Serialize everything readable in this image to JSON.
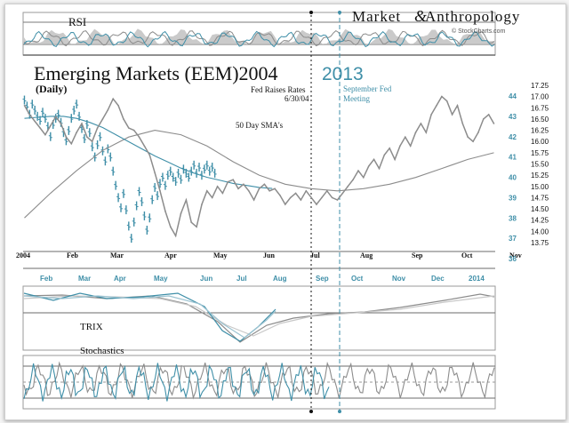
{
  "header": {
    "brand_left": "Market",
    "brand_symbol": "&",
    "brand_right": "Anthropology",
    "credit": "© StockCharts.com",
    "title_black": "Emerging Markets (EEM)2004",
    "title_teal": "2013",
    "subtitle": "(Daily)"
  },
  "panels": {
    "rsi": "RSI",
    "trix": "TRIX",
    "stochastics": "Stochastics"
  },
  "annotations": {
    "fed_2004_line1": "Fed Raises Rates",
    "fed_2004_line2": "6/30/04",
    "fed_2013_line1": "September Fed",
    "fed_2013_line2": "Meeting",
    "sma": "50 Day SMA's"
  },
  "colors": {
    "series_2004": "#8c8c8c",
    "series_2013": "#3f8fa8",
    "text": "#111111"
  },
  "chart_data": {
    "type": "line",
    "title": "Emerging Markets (EEM)2004 2013",
    "subtitle": "(Daily)",
    "x_axis_2004": [
      "2004",
      "Feb",
      "Mar",
      "Apr",
      "May",
      "Jun",
      "Jul",
      "Aug",
      "Sep",
      "Oct",
      "Nov"
    ],
    "x_axis_2013": [
      "Feb",
      "Mar",
      "Apr",
      "May",
      "Jun",
      "Jul",
      "Aug",
      "Sep",
      "Oct",
      "Nov",
      "Dec",
      "2014"
    ],
    "y_axis_2013_ticks": [
      44,
      43,
      42,
      41,
      40,
      39,
      38,
      37,
      36
    ],
    "y_axis_2004_ticks": [
      17.25,
      17.0,
      16.75,
      16.5,
      16.25,
      16.0,
      15.75,
      15.5,
      15.25,
      15.0,
      14.75,
      14.5,
      14.25,
      14.0,
      13.75
    ],
    "series": [
      {
        "name": "2013",
        "axis": "left-teal",
        "style": "bars",
        "x": [
          1,
          3,
          5,
          7,
          9,
          11,
          13,
          15,
          17,
          19,
          21,
          23,
          25,
          27,
          29,
          31,
          33,
          35,
          37,
          39,
          41,
          43,
          45,
          47,
          49,
          51,
          53,
          55,
          57,
          59,
          61,
          63,
          65,
          67,
          69,
          71,
          73,
          75,
          77,
          79,
          81,
          83,
          85,
          87,
          89,
          91,
          93,
          95,
          97,
          99,
          101,
          103,
          105,
          107,
          109,
          111,
          113,
          115,
          117,
          119,
          121,
          123,
          125,
          127,
          129,
          131,
          133,
          135,
          137,
          139,
          141,
          143,
          145,
          147
        ],
        "values": [
          43.8,
          43.5,
          43.1,
          43.6,
          43.3,
          43.0,
          42.8,
          43.2,
          42.9,
          42.5,
          42.0,
          42.6,
          42.9,
          43.1,
          42.7,
          42.2,
          41.8,
          42.3,
          42.9,
          43.3,
          43.6,
          43.0,
          42.4,
          41.9,
          42.6,
          42.2,
          41.5,
          41.0,
          41.6,
          42.0,
          41.3,
          40.8,
          41.4,
          41.0,
          40.3,
          39.6,
          39.0,
          38.5,
          39.2,
          38.4,
          37.6,
          37.0,
          37.8,
          38.6,
          39.3,
          38.8,
          38.1,
          37.4,
          38.0,
          38.9,
          39.5,
          39.1,
          39.7,
          40.0,
          39.6,
          40.1,
          40.3,
          40.0,
          39.8,
          40.2,
          39.9,
          40.4,
          40.2,
          40.0,
          40.3,
          40.6,
          40.2,
          40.5,
          40.1,
          40.4,
          40.6,
          40.3,
          40.5,
          40.2
        ]
      },
      {
        "name": "2004",
        "axis": "right",
        "style": "line",
        "x": [
          1,
          5,
          9,
          13,
          17,
          21,
          25,
          29,
          33,
          37,
          41,
          45,
          49,
          53,
          57,
          61,
          65,
          69,
          73,
          77,
          81,
          85,
          89,
          93,
          97,
          101,
          105,
          109,
          113,
          117,
          121,
          125,
          129,
          133,
          137,
          141,
          145,
          149,
          153,
          157,
          161,
          165,
          169,
          173,
          177,
          181,
          185,
          189,
          193,
          197,
          201,
          205,
          209,
          213,
          217,
          221,
          225,
          229,
          233,
          237,
          241,
          245,
          249,
          253,
          257,
          261,
          265,
          269,
          273,
          277,
          281,
          285,
          289,
          293,
          297,
          301,
          305,
          309,
          313,
          317,
          321,
          325,
          329,
          333,
          337,
          341,
          345,
          349,
          353,
          357,
          361
        ],
        "values": [
          16.8,
          16.6,
          16.45,
          16.3,
          16.15,
          16.35,
          16.55,
          16.4,
          16.1,
          15.95,
          16.2,
          16.4,
          16.1,
          16.0,
          16.3,
          16.5,
          16.7,
          16.95,
          16.8,
          16.5,
          16.3,
          16.25,
          16.1,
          15.9,
          15.7,
          15.3,
          14.9,
          14.45,
          14.1,
          13.9,
          14.4,
          14.7,
          14.2,
          14.1,
          14.6,
          14.9,
          14.75,
          15.0,
          14.85,
          15.1,
          15.15,
          14.95,
          15.05,
          14.9,
          14.7,
          14.95,
          15.05,
          14.9,
          14.95,
          14.8,
          14.6,
          14.75,
          14.85,
          14.7,
          14.9,
          14.75,
          14.6,
          14.75,
          14.9,
          14.75,
          14.7,
          14.85,
          15.0,
          15.15,
          15.35,
          15.2,
          15.45,
          15.6,
          15.4,
          15.7,
          15.85,
          15.6,
          15.9,
          16.1,
          15.9,
          16.2,
          16.4,
          16.2,
          16.6,
          16.8,
          17.0,
          16.9,
          16.6,
          16.8,
          16.4,
          16.1,
          16.0,
          16.2,
          16.5,
          16.6,
          16.4
        ]
      },
      {
        "name": "50 Day SMA's",
        "axis": "right",
        "style": "line",
        "x": [
          1,
          21,
          41,
          61,
          81,
          101,
          121,
          141,
          161,
          181,
          201,
          221,
          241,
          261,
          281,
          301,
          321,
          341,
          361
        ],
        "values": [
          14.3,
          14.85,
          15.35,
          15.8,
          16.1,
          16.25,
          16.15,
          15.9,
          15.55,
          15.25,
          15.05,
          14.95,
          14.9,
          14.95,
          15.05,
          15.2,
          15.4,
          15.6,
          15.75
        ]
      },
      {
        "name": "50 Day SMA's",
        "axis": "left-teal",
        "style": "line",
        "x": [
          1,
          11,
          21,
          31,
          41,
          51,
          61,
          71,
          81,
          91,
          101,
          111,
          121,
          131,
          141,
          151,
          161,
          171,
          181,
          191
        ],
        "values": [
          42.9,
          42.95,
          43.0,
          43.0,
          42.9,
          42.7,
          42.45,
          42.1,
          41.75,
          41.4,
          41.05,
          40.75,
          40.45,
          40.2,
          40.0,
          39.85,
          39.7,
          39.6,
          39.5,
          39.45
        ]
      }
    ],
    "annotations": [
      "Fed Raises Rates 6/30/04",
      "September Fed Meeting",
      "50 Day SMA's"
    ],
    "grid": false,
    "legend": "none"
  }
}
